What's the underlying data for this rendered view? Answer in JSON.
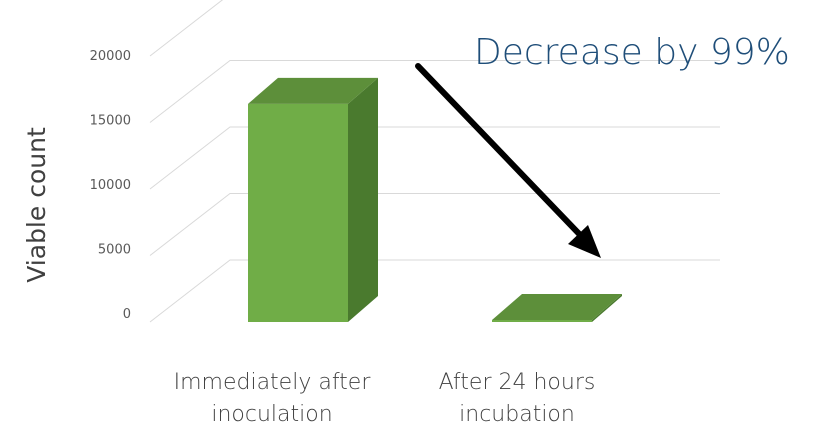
{
  "chart_data": {
    "type": "bar",
    "style": "3d",
    "categories": [
      [
        "Immediately after",
        "inoculation"
      ],
      [
        "After 24 hours",
        "incubation"
      ]
    ],
    "values": [
      16400,
      150
    ],
    "ylabel": "Viable count",
    "xlabel": "",
    "title": "",
    "ylim": [
      0,
      20000
    ],
    "yticks": [
      "0",
      "5000",
      "10000",
      "15000",
      "20000"
    ],
    "grid": true,
    "annotation": "Decrease by 99%",
    "colors": {
      "bar_front": "#70ad47",
      "bar_side": "#4a7a2e",
      "bar_top": "#5d8f3a",
      "grid": "#d9d9d9",
      "annotation": "#1f4e79",
      "arrow": "#000000"
    }
  }
}
